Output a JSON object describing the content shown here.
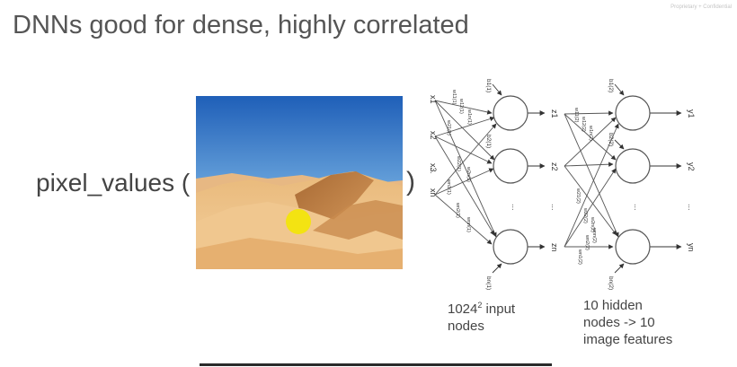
{
  "slide": {
    "title": "DNNs good for dense, highly correlated",
    "confidential": "Proprietary + Confidential",
    "pixel_label": "pixel_values (",
    "close_paren": ")"
  },
  "captions": {
    "input_prefix": "1024",
    "input_exp": "2",
    "input_suffix": " input nodes",
    "hidden": "10 hidden nodes -> 10 image features"
  },
  "network": {
    "inputs": [
      "x1",
      "x2",
      "x3",
      "xn"
    ],
    "hidden_outputs": [
      "z1",
      "z2",
      "zn"
    ],
    "outputs": [
      "y1",
      "y2",
      "yn"
    ],
    "biases_layer1": [
      "b1(1)",
      "b2(1)",
      "bn(1)"
    ],
    "biases_layer2": [
      "b1(2)",
      "b2(2)",
      "bn(2)"
    ],
    "weights_layer1": [
      "w11(1)",
      "w12(1)",
      "w1n(1)",
      "w21(1)",
      "w22(1)",
      "w2n(1)",
      "wn1(1)",
      "wn2(1)",
      "wnn(1)"
    ],
    "weights_layer2": [
      "w11(2)",
      "w12(2)",
      "w1n(2)",
      "w21(2)",
      "w22(2)",
      "w2n(2)",
      "wn1(2)",
      "wn2(2)",
      "wnn(2)"
    ],
    "ellipsis": "..."
  },
  "colors": {
    "sky_top": "#1f5fb8",
    "sky_bottom": "#b9dcf2",
    "sand_light": "#f0c890",
    "sand_dark": "#b87a3e",
    "sun": "#f3e312",
    "node_stroke": "#555555"
  },
  "icons": {
    "sun": "sun-circle",
    "arrowhead": "arrow-head"
  }
}
